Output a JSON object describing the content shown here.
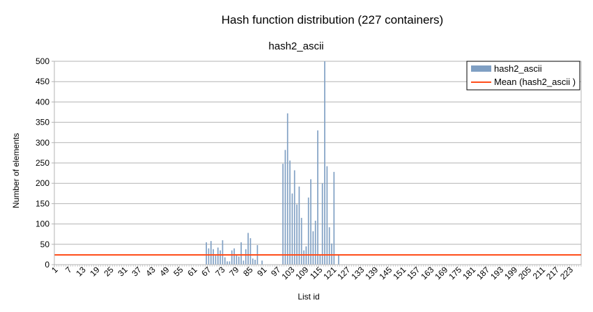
{
  "chart_data": {
    "type": "bar",
    "title": "Hash function distribution (227 containers)",
    "subtitle": "hash2_ascii",
    "xlabel": "List id",
    "ylabel": "Number of elements",
    "ylim": [
      0,
      500
    ],
    "yticks": [
      0,
      50,
      100,
      150,
      200,
      250,
      300,
      350,
      400,
      450,
      500
    ],
    "x_range": [
      1,
      227
    ],
    "xtick_labels": [
      "1",
      "7",
      "13",
      "19",
      "25",
      "31",
      "37",
      "43",
      "49",
      "55",
      "61",
      "67",
      "73",
      "79",
      "85",
      "91",
      "97",
      "103",
      "109",
      "115",
      "121",
      "127",
      "133",
      "139",
      "145",
      "151",
      "157",
      "163",
      "169",
      "175",
      "181",
      "187",
      "193",
      "199",
      "205",
      "211",
      "217",
      "223"
    ],
    "grid": "horizontal",
    "legend_position": "top-right",
    "series": [
      {
        "name": "hash2_ascii",
        "kind": "bar",
        "color": "#7f9fc3",
        "points": [
          [
            66,
            55
          ],
          [
            67,
            40
          ],
          [
            68,
            58
          ],
          [
            69,
            38
          ],
          [
            70,
            22
          ],
          [
            71,
            42
          ],
          [
            72,
            35
          ],
          [
            73,
            60
          ],
          [
            74,
            18
          ],
          [
            75,
            8
          ],
          [
            76,
            8
          ],
          [
            77,
            35
          ],
          [
            78,
            40
          ],
          [
            79,
            25
          ],
          [
            80,
            20
          ],
          [
            81,
            55
          ],
          [
            82,
            10
          ],
          [
            83,
            38
          ],
          [
            84,
            78
          ],
          [
            85,
            65
          ],
          [
            86,
            15
          ],
          [
            87,
            12
          ],
          [
            88,
            48
          ],
          [
            90,
            10
          ],
          [
            99,
            248
          ],
          [
            100,
            282
          ],
          [
            101,
            372
          ],
          [
            102,
            256
          ],
          [
            103,
            175
          ],
          [
            104,
            232
          ],
          [
            105,
            148
          ],
          [
            106,
            192
          ],
          [
            107,
            115
          ],
          [
            108,
            35
          ],
          [
            109,
            45
          ],
          [
            110,
            165
          ],
          [
            111,
            210
          ],
          [
            112,
            82
          ],
          [
            113,
            108
          ],
          [
            114,
            330
          ],
          [
            115,
            25
          ],
          [
            116,
            200
          ],
          [
            117,
            500
          ],
          [
            118,
            242
          ],
          [
            119,
            92
          ],
          [
            120,
            52
          ],
          [
            121,
            228
          ],
          [
            123,
            25
          ]
        ]
      },
      {
        "name": "Mean (hash2_ascii )",
        "kind": "line",
        "color": "#ff4d1a",
        "value": 24
      }
    ]
  }
}
